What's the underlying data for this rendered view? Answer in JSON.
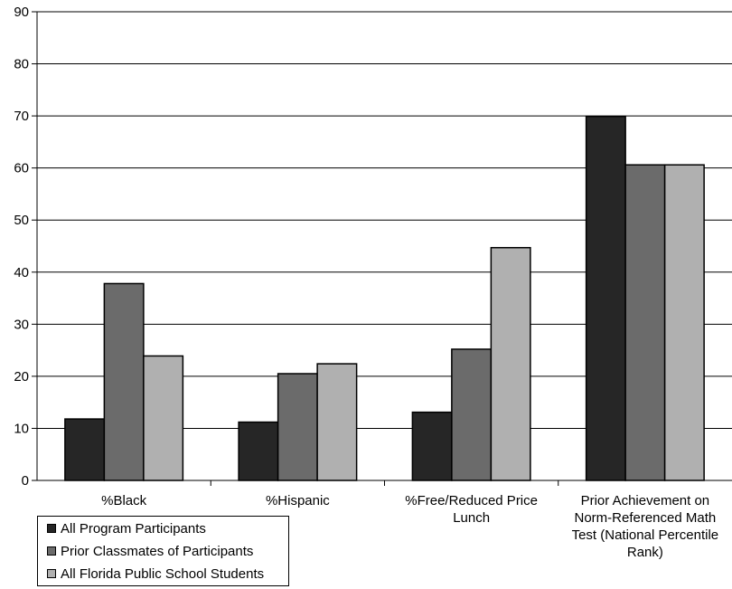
{
  "chart_data": {
    "type": "bar",
    "categories": [
      [
        "%Black"
      ],
      [
        "%Hispanic"
      ],
      [
        "%Free/Reduced Price",
        "Lunch"
      ],
      [
        "Prior Achievement on",
        "Norm-Referenced Math",
        "Test (National Percentile",
        "Rank)"
      ]
    ],
    "series": [
      {
        "name": "All Program Participants",
        "color": "#262626",
        "values": [
          11.8,
          11.2,
          13.1,
          69.9
        ]
      },
      {
        "name": "Prior Classmates of Participants",
        "color": "#6b6b6b",
        "values": [
          37.8,
          20.5,
          25.2,
          60.6
        ]
      },
      {
        "name": "All Florida Public School Students",
        "color": "#b0b0b0",
        "values": [
          23.9,
          22.4,
          44.7,
          60.6
        ]
      }
    ],
    "title": "",
    "xlabel": "",
    "ylabel": "",
    "ylim": [
      0,
      90
    ],
    "yticks": [
      0,
      10,
      20,
      30,
      40,
      50,
      60,
      70,
      80,
      90
    ],
    "grid": true,
    "legend_position": "bottom-left"
  }
}
